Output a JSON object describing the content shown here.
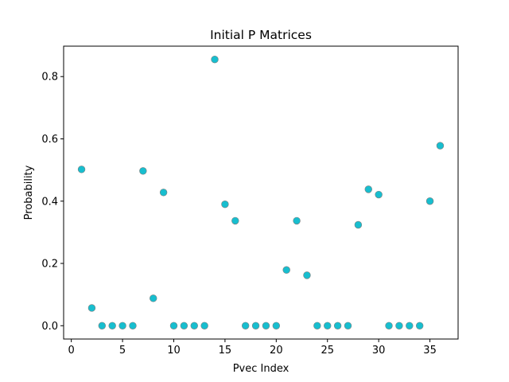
{
  "chart_data": {
    "type": "scatter",
    "title": "Initial P Matrices",
    "xlabel": "Pvec Index",
    "ylabel": "Probability",
    "xlim": [
      -0.75,
      37.75
    ],
    "ylim": [
      -0.04275,
      0.8977
    ],
    "xticks": [
      0,
      5,
      10,
      15,
      20,
      25,
      30,
      35
    ],
    "yticks": [
      0.0,
      0.2,
      0.4,
      0.6,
      0.8
    ],
    "xtick_labels": [
      "0",
      "5",
      "10",
      "15",
      "20",
      "25",
      "30",
      "35"
    ],
    "ytick_labels": [
      "0.0",
      "0.2",
      "0.4",
      "0.6",
      "0.8"
    ],
    "grid": false,
    "marker_color": "#17becf",
    "marker_edge_color": "#7f7f7f",
    "x": [
      1,
      2,
      3,
      4,
      5,
      6,
      7,
      8,
      9,
      10,
      11,
      12,
      13,
      14,
      15,
      16,
      17,
      18,
      19,
      20,
      21,
      22,
      23,
      24,
      25,
      26,
      27,
      28,
      29,
      30,
      31,
      32,
      33,
      34,
      35,
      36
    ],
    "y": [
      0.502,
      0.057,
      0.0,
      0.0,
      0.0,
      0.0,
      0.497,
      0.088,
      0.428,
      0.0,
      0.0,
      0.0,
      0.0,
      0.855,
      0.39,
      0.337,
      0.0,
      0.0,
      0.0,
      0.0,
      0.179,
      0.337,
      0.162,
      0.0,
      0.0,
      0.0,
      0.0,
      0.324,
      0.438,
      0.421,
      0.0,
      0.0,
      0.0,
      0.0,
      0.4,
      0.578
    ]
  }
}
